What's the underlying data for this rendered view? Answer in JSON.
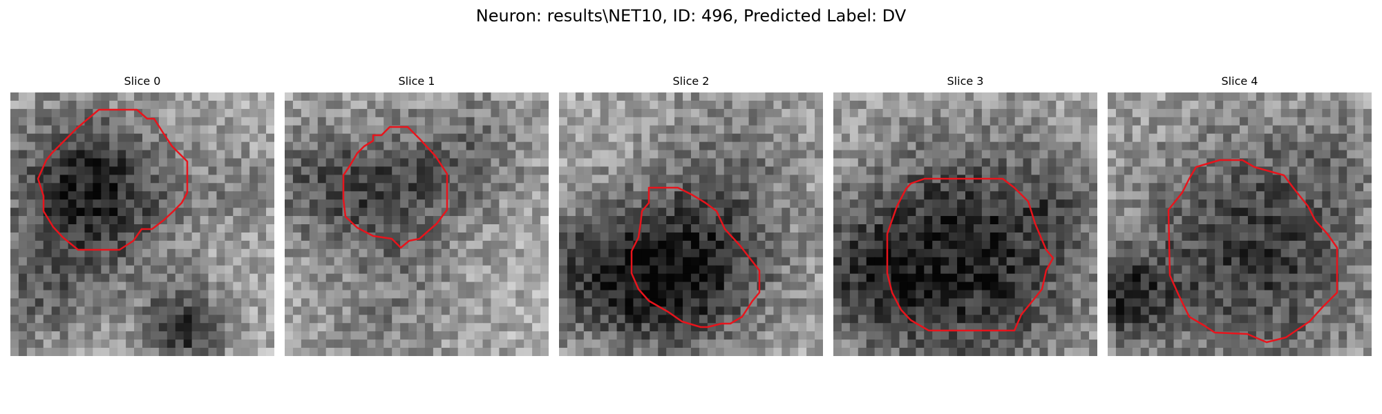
{
  "figure": {
    "title": "Neuron: results\\NET10, ID: 496, Predicted Label: DV"
  },
  "slices": [
    {
      "label": "Slice 0"
    },
    {
      "label": "Slice 1"
    },
    {
      "label": "Slice 2"
    },
    {
      "label": "Slice 3"
    },
    {
      "label": "Slice 4"
    }
  ],
  "colors": {
    "contour": "#e8141c",
    "background": "#ffffff"
  }
}
